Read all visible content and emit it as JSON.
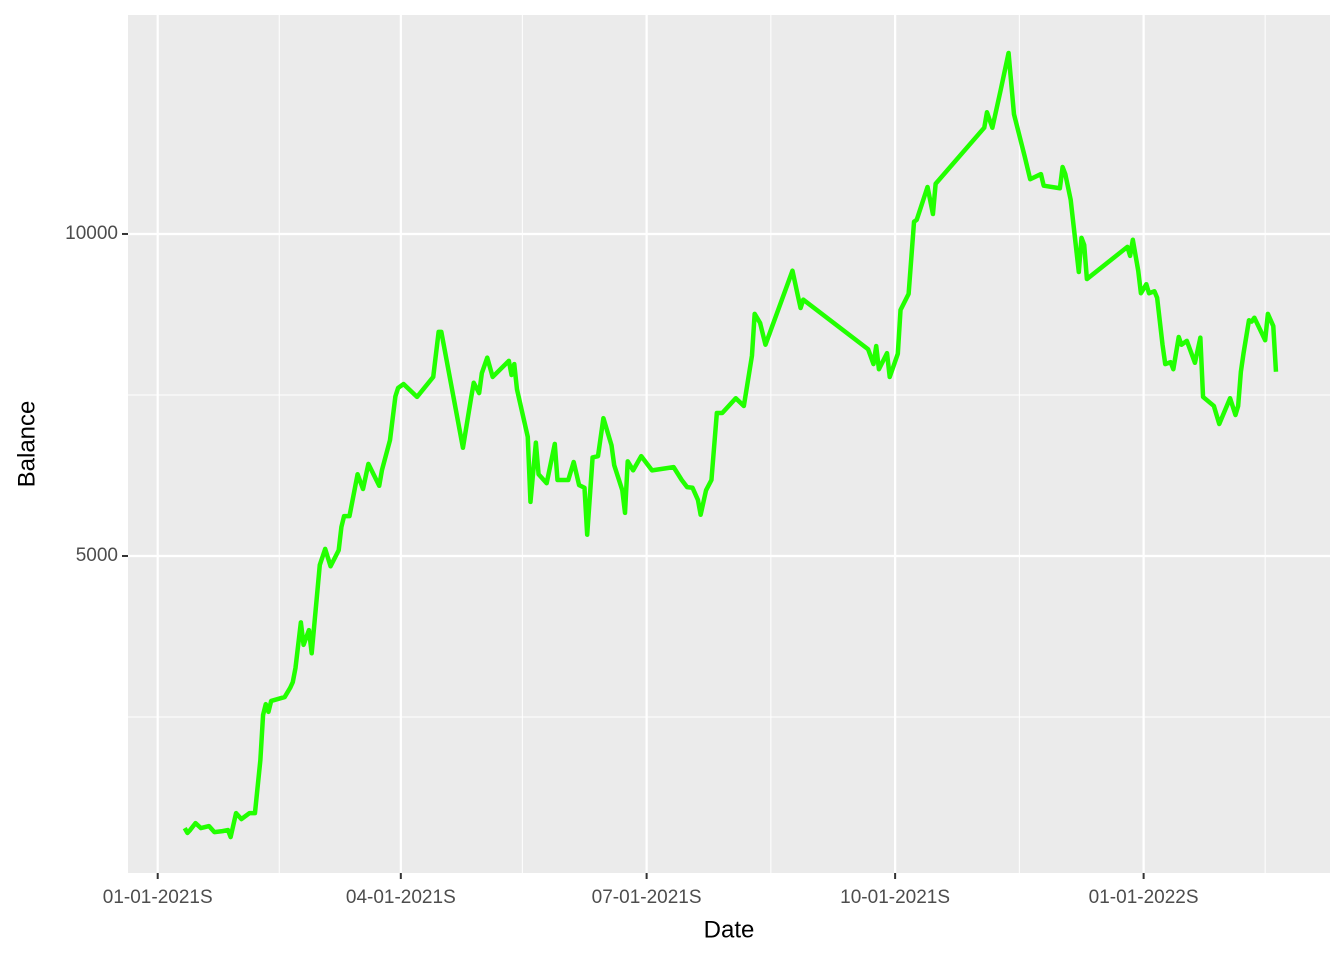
{
  "chart_data": {
    "type": "line",
    "x_label": "Date",
    "y_label": "Balance",
    "color": "#22ff00",
    "x": [
      "2021-01-11",
      "2021-01-12",
      "2021-01-13",
      "2021-01-15",
      "2021-01-17",
      "2021-01-20",
      "2021-01-22",
      "2021-01-25",
      "2021-01-27",
      "2021-01-28",
      "2021-01-30",
      "2021-02-01",
      "2021-02-04",
      "2021-02-06",
      "2021-02-08",
      "2021-02-09",
      "2021-02-10",
      "2021-02-11",
      "2021-02-12",
      "2021-02-17",
      "2021-02-19",
      "2021-02-20",
      "2021-02-21",
      "2021-02-23",
      "2021-02-24",
      "2021-02-26",
      "2021-02-27",
      "2021-03-02",
      "2021-03-04",
      "2021-03-06",
      "2021-03-09",
      "2021-03-10",
      "2021-03-11",
      "2021-03-13",
      "2021-03-16",
      "2021-03-18",
      "2021-03-20",
      "2021-03-24",
      "2021-03-25",
      "2021-03-28",
      "2021-03-30",
      "2021-03-31",
      "2021-04-02",
      "2021-04-07",
      "2021-04-13",
      "2021-04-15",
      "2021-04-16",
      "2021-04-24",
      "2021-04-27",
      "2021-04-28",
      "2021-04-30",
      "2021-05-01",
      "2021-05-03",
      "2021-05-05",
      "2021-05-11",
      "2021-05-12",
      "2021-05-13",
      "2021-05-14",
      "2021-05-18",
      "2021-05-19",
      "2021-05-21",
      "2021-05-22",
      "2021-05-25",
      "2021-05-28",
      "2021-05-29",
      "2021-06-02",
      "2021-06-04",
      "2021-06-06",
      "2021-06-08",
      "2021-06-09",
      "2021-06-11",
      "2021-06-13",
      "2021-06-15",
      "2021-06-18",
      "2021-06-19",
      "2021-06-22",
      "2021-06-23",
      "2021-06-24",
      "2021-06-26",
      "2021-06-29",
      "2021-07-03",
      "2021-07-11",
      "2021-07-14",
      "2021-07-16",
      "2021-07-18",
      "2021-07-20",
      "2021-07-21",
      "2021-07-23",
      "2021-07-25",
      "2021-07-27",
      "2021-07-29",
      "2021-08-03",
      "2021-08-06",
      "2021-08-09",
      "2021-08-10",
      "2021-08-12",
      "2021-08-14",
      "2021-08-24",
      "2021-08-26",
      "2021-08-27",
      "2021-08-28",
      "2021-09-21",
      "2021-09-23",
      "2021-09-24",
      "2021-09-25",
      "2021-09-28",
      "2021-09-29",
      "2021-10-02",
      "2021-10-03",
      "2021-10-06",
      "2021-10-08",
      "2021-10-09",
      "2021-10-13",
      "2021-10-15",
      "2021-10-16",
      "2021-11-03",
      "2021-11-04",
      "2021-11-06",
      "2021-11-09",
      "2021-11-12",
      "2021-11-14",
      "2021-11-18",
      "2021-11-20",
      "2021-11-24",
      "2021-11-25",
      "2021-12-01",
      "2021-12-02",
      "2021-12-03",
      "2021-12-05",
      "2021-12-08",
      "2021-12-09",
      "2021-12-10",
      "2021-12-11",
      "2021-12-26",
      "2021-12-27",
      "2021-12-28",
      "2021-12-30",
      "2021-12-31",
      "2022-01-02",
      "2022-01-03",
      "2022-01-05",
      "2022-01-06",
      "2022-01-08",
      "2022-01-09",
      "2022-01-11",
      "2022-01-12",
      "2022-01-14",
      "2022-01-15",
      "2022-01-17",
      "2022-01-20",
      "2022-01-22",
      "2022-01-23",
      "2022-01-27",
      "2022-01-29",
      "2022-02-02",
      "2022-02-04",
      "2022-02-05",
      "2022-02-06",
      "2022-02-07",
      "2022-02-09",
      "2022-02-10",
      "2022-02-11",
      "2022-02-15",
      "2022-02-16",
      "2022-02-18",
      "2022-02-19"
    ],
    "values": [
      775,
      700,
      745,
      853,
      775,
      806,
      713,
      728,
      745,
      636,
      1008,
      915,
      1008,
      1008,
      1830,
      2530,
      2700,
      2580,
      2750,
      2810,
      2950,
      3040,
      3260,
      3970,
      3620,
      3850,
      3490,
      4860,
      5110,
      4840,
      5090,
      5450,
      5620,
      5620,
      6270,
      6040,
      6430,
      6090,
      6330,
      6800,
      7480,
      7610,
      7670,
      7470,
      7780,
      8480,
      8480,
      6680,
      7450,
      7690,
      7530,
      7840,
      8080,
      7780,
      8030,
      7810,
      7980,
      7590,
      6850,
      5840,
      6760,
      6270,
      6130,
      6740,
      6180,
      6180,
      6460,
      6100,
      6060,
      5330,
      6530,
      6550,
      7140,
      6720,
      6410,
      6020,
      5670,
      6470,
      6330,
      6550,
      6330,
      6380,
      6180,
      6070,
      6060,
      5870,
      5640,
      6020,
      6180,
      7220,
      7220,
      7450,
      7330,
      8110,
      8760,
      8620,
      8280,
      9430,
      9040,
      8850,
      8980,
      8210,
      7980,
      8260,
      7900,
      8150,
      7780,
      8140,
      8820,
      9070,
      10190,
      10220,
      10730,
      10310,
      10780,
      11650,
      11890,
      11650,
      12220,
      12810,
      11860,
      11200,
      10850,
      10930,
      10750,
      10710,
      11040,
      10930,
      10530,
      9410,
      9940,
      9830,
      9300,
      9800,
      9660,
      9910,
      9430,
      9080,
      9220,
      9080,
      9110,
      9010,
      8280,
      7980,
      8010,
      7900,
      8400,
      8280,
      8340,
      8000,
      8390,
      7470,
      7330,
      7050,
      7450,
      7190,
      7330,
      7860,
      8150,
      8660,
      8640,
      8700,
      8350,
      8760,
      8570,
      7860
    ],
    "xlim": [
      "2020-12-21",
      "2022-03-11"
    ],
    "xticks": [
      {
        "value": "2021-01-01",
        "label": "01-01-2021S"
      },
      {
        "value": "2021-04-01",
        "label": "04-01-2021S"
      },
      {
        "value": "2021-07-01",
        "label": "07-01-2021S"
      },
      {
        "value": "2021-10-01",
        "label": "10-01-2021S"
      },
      {
        "value": "2022-01-01",
        "label": "01-01-2022S"
      }
    ],
    "x_minor_gridlines": [
      "2021-02-15",
      "2021-05-16",
      "2021-08-16",
      "2021-11-16",
      "2022-02-15"
    ],
    "ylim": [
      78,
      13400
    ],
    "yticks": [
      5000,
      10000
    ],
    "y_minor_gridlines": [
      2500,
      7500
    ],
    "grid": true
  }
}
